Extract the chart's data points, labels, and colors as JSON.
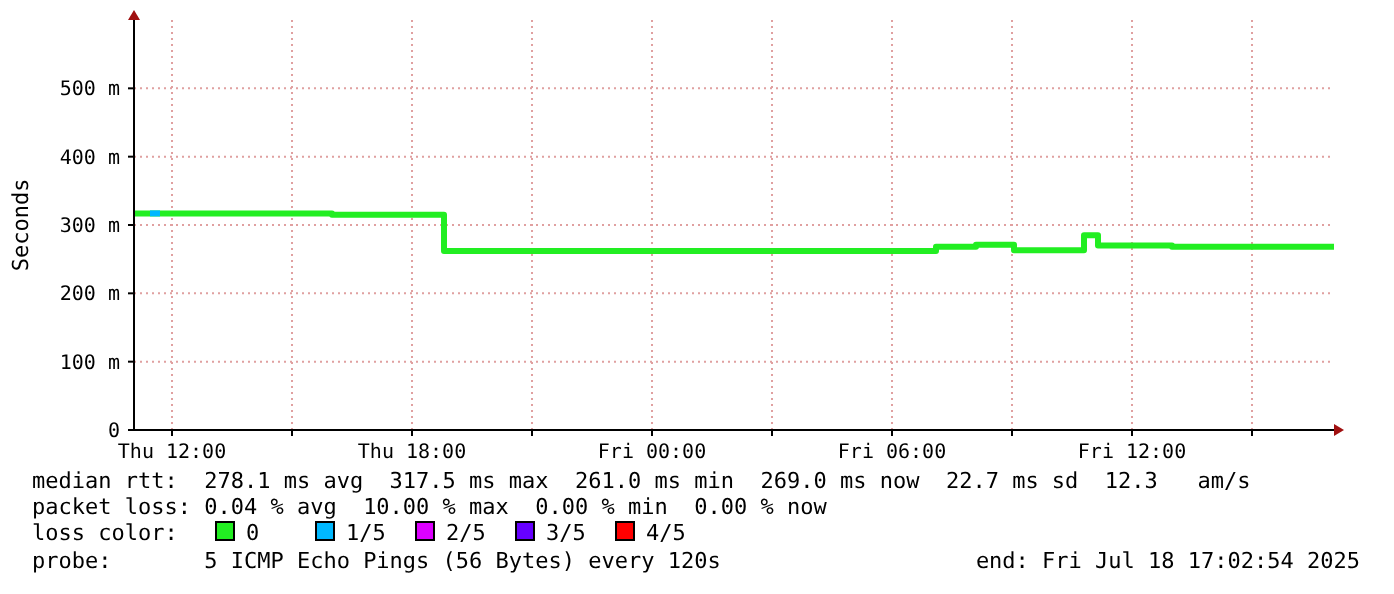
{
  "chart_data": {
    "type": "step",
    "ylabel": "Seconds",
    "x": [
      "2025-07-17T11:03",
      "2025-07-17T16:00",
      "2025-07-17T18:48",
      "2025-07-18T07:06",
      "2025-07-18T08:06",
      "2025-07-18T09:03",
      "2025-07-18T10:48",
      "2025-07-18T11:09",
      "2025-07-18T13:00",
      "2025-07-18T17:03"
    ],
    "series": [
      {
        "name": "0",
        "color": "#22ee22",
        "values": [
          317,
          315,
          262,
          268,
          271,
          263,
          285,
          270,
          268,
          268
        ]
      },
      {
        "name": "1/5",
        "color": "#00b8ff",
        "x": [
          "2025-07-17T11:27",
          "2025-07-17T11:42"
        ],
        "values": [
          317,
          317
        ]
      },
      {
        "name": "2/5",
        "color": "#dd00ff",
        "values": [
          null,
          null,
          null,
          null,
          null,
          null,
          null,
          null,
          null,
          null
        ]
      },
      {
        "name": "3/5",
        "color": "#6600ff",
        "values": [
          null,
          null,
          null,
          null,
          null,
          null,
          null,
          null,
          null,
          null
        ]
      },
      {
        "name": "4/5",
        "color": "#ff0000",
        "values": [
          null,
          null,
          null,
          null,
          null,
          null,
          null,
          null,
          null,
          null
        ]
      }
    ],
    "legend": "bottom",
    "legend_title": "loss color:",
    "xlim": [
      "2025-07-17T11:03",
      "2025-07-18T17:03"
    ],
    "xticks": [
      {
        "value": "2025-07-17T12:00",
        "label": "Thu 12:00"
      },
      {
        "value": "2025-07-17T15:00",
        "label": null
      },
      {
        "value": "2025-07-17T18:00",
        "label": "Thu 18:00"
      },
      {
        "value": "2025-07-17T21:00",
        "label": null
      },
      {
        "value": "2025-07-18T00:00",
        "label": "Fri 00:00"
      },
      {
        "value": "2025-07-18T03:00",
        "label": null
      },
      {
        "value": "2025-07-18T06:00",
        "label": "Fri 06:00"
      },
      {
        "value": "2025-07-18T09:00",
        "label": null
      },
      {
        "value": "2025-07-18T12:00",
        "label": "Fri 12:00"
      },
      {
        "value": "2025-07-18T15:00",
        "label": null
      }
    ],
    "ylim": [
      0,
      600
    ],
    "yticks": [
      0,
      {
        "value": 100,
        "label": "100 m"
      },
      {
        "value": 200,
        "label": "200 m"
      },
      {
        "value": 300,
        "label": "300 m"
      },
      {
        "value": 400,
        "label": "400 m"
      },
      {
        "value": 500,
        "label": "500 m"
      }
    ],
    "grid": true,
    "annotations": [
      "median rtt:  278.1 ms avg  317.5 ms max  261.0 ms min  269.0 ms now  22.7 ms sd  12.3   am/s",
      "packet loss: 0.04 % avg  10.00 % max  0.00 % min  0.00 % now",
      "probe:       5 ICMP Echo Pings (56 Bytes) every 120s",
      "end: Fri Jul 18 17:02:54 2025"
    ]
  }
}
